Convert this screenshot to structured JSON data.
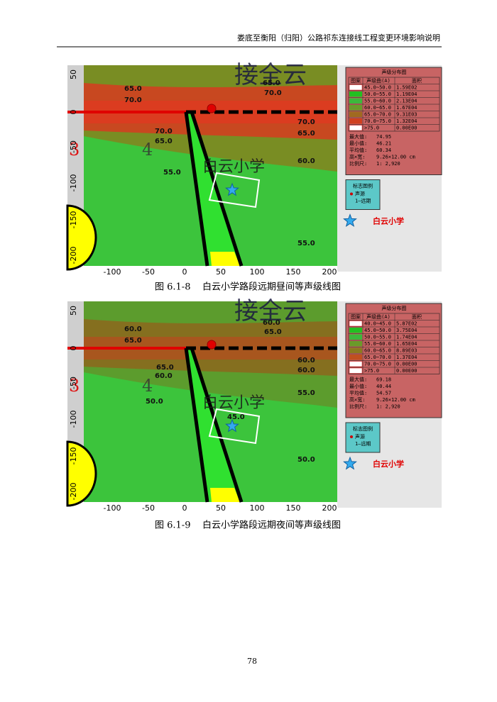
{
  "header": {
    "title": "娄底至衡阳（归阳）公路祁东连接线工程变更环境影响说明"
  },
  "figures": [
    {
      "map": {
        "y_ticks": [
          "50",
          "0",
          "-50",
          "-100",
          "-150",
          "-200"
        ],
        "x_ticks": [
          "-100",
          "-50",
          "0",
          "50",
          "100",
          "150",
          "200"
        ],
        "contour_labels": [
          "65.0",
          "70.0",
          "65.0",
          "70.0",
          "70.0",
          "65.0",
          "70.0",
          "65.0",
          "55.0",
          "60.0",
          "55.0"
        ],
        "overlay_texts": [
          "接全云",
          "白云小学",
          "4",
          "3"
        ],
        "school_label": "白云小学"
      },
      "legend": {
        "title": "声级分布图",
        "columns": [
          "图案",
          "声级曲(A)",
          "面积"
        ],
        "rows": [
          [
            "45.0~50.0",
            "1.59E02"
          ],
          [
            "50.0~55.0",
            "1.19E04"
          ],
          [
            "55.0~60.0",
            "2.13E04"
          ],
          [
            "60.0~65.0",
            "1.67E04"
          ],
          [
            "65.0~70.0",
            "9.31E03"
          ],
          [
            "70.0~75.0",
            "1.32E04"
          ],
          [
            ">75.0",
            "0.00E00"
          ]
        ],
        "stats": [
          [
            "最大值:",
            "74.95"
          ],
          [
            "最小值:",
            "46.21"
          ],
          [
            "平均值:",
            "60.34"
          ],
          [
            "高×宽:",
            "9.26×12.00 cm"
          ],
          [
            "比例尺:",
            "1: 2,920"
          ]
        ]
      },
      "marker_legend": {
        "title": "标志图例",
        "items": [
          "声源",
          "1—远期"
        ]
      },
      "caption": {
        "number": "图 6.1-8",
        "text": "白云小学路段远期昼间等声级线图"
      }
    },
    {
      "map": {
        "y_ticks": [
          "50",
          "0",
          "-50",
          "-100",
          "-150",
          "-200"
        ],
        "x_ticks": [
          "-100",
          "-50",
          "0",
          "50",
          "100",
          "150",
          "200"
        ],
        "contour_labels": [
          "60.0",
          "65.0",
          "60.0",
          "65.0",
          "60.0",
          "65.0",
          "60.0",
          "50.0",
          "60.0",
          "55.0",
          "45.0",
          "50.0"
        ],
        "overlay_texts": [
          "接全云",
          "白云小学",
          "4",
          "3"
        ],
        "school_label": "白云小学"
      },
      "legend": {
        "title": "声级分布图",
        "columns": [
          "图案",
          "声级曲(A)",
          "面积"
        ],
        "rows": [
          [
            "40.0~45.0",
            "5.87E02"
          ],
          [
            "45.0~50.0",
            "3.75E04"
          ],
          [
            "50.0~55.0",
            "1.74E04"
          ],
          [
            "55.0~60.0",
            "1.65E04"
          ],
          [
            "60.0~65.0",
            "8.89E03"
          ],
          [
            "65.0~70.0",
            "1.37E04"
          ],
          [
            "70.0~75.0",
            "0.00E00"
          ],
          [
            ">75.0",
            "0.00E00"
          ]
        ],
        "stats": [
          [
            "最大值:",
            "69.18"
          ],
          [
            "最小值:",
            "40.44"
          ],
          [
            "平均值:",
            "54.57"
          ],
          [
            "高×宽:",
            "9.26×12.00 cm"
          ],
          [
            "比例尺:",
            "1: 2,920"
          ]
        ]
      },
      "marker_legend": {
        "title": "标志图例",
        "items": [
          "声源",
          "1—远期"
        ]
      },
      "caption": {
        "number": "图 6.1-9",
        "text": "白云小学路段远期夜间等声级线图"
      }
    }
  ],
  "page_number": "78"
}
